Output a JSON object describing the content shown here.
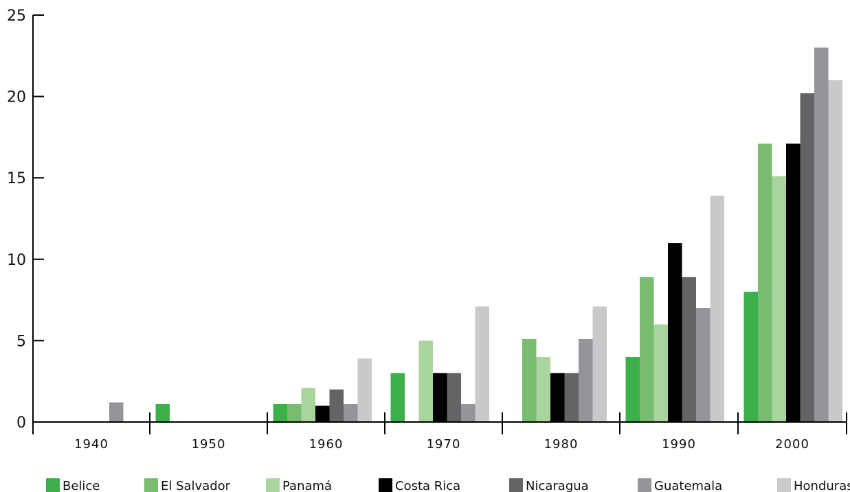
{
  "chart_data": {
    "type": "bar",
    "title": "",
    "xlabel": "",
    "ylabel": "",
    "ylim": [
      0,
      25
    ],
    "yticks": [
      "0",
      "5",
      "10",
      "15",
      "20",
      "25"
    ],
    "categories": [
      "1940",
      "1950",
      "1960",
      "1970",
      "1980",
      "1990",
      "2000"
    ],
    "grid": false,
    "legend_position": "bottom",
    "series": [
      {
        "name": "Belice",
        "color": "#3cb04a",
        "values": [
          0,
          1.1,
          1.1,
          3,
          0,
          4,
          8
        ]
      },
      {
        "name": "El Salvador",
        "color": "#78bd6f",
        "values": [
          0,
          0,
          1.1,
          0,
          5.1,
          8.9,
          17.1
        ]
      },
      {
        "name": "Panamá",
        "color": "#a9d49e",
        "values": [
          0,
          0,
          2.1,
          5,
          4,
          6,
          15.1
        ]
      },
      {
        "name": "Costa Rica",
        "color": "#000000",
        "values": [
          0,
          0,
          1,
          3,
          3,
          11,
          17.1
        ]
      },
      {
        "name": "Nicaragua",
        "color": "#636466",
        "values": [
          0,
          0,
          2,
          3,
          3,
          8.9,
          20.2
        ]
      },
      {
        "name": "Guatemala",
        "color": "#939598",
        "values": [
          1.2,
          0,
          1.1,
          1.1,
          5.1,
          7,
          23
        ]
      },
      {
        "name": "Honduras",
        "color": "#c8c9cb",
        "values": [
          0,
          0,
          3.9,
          7.1,
          7.1,
          13.9,
          21
        ]
      }
    ]
  }
}
